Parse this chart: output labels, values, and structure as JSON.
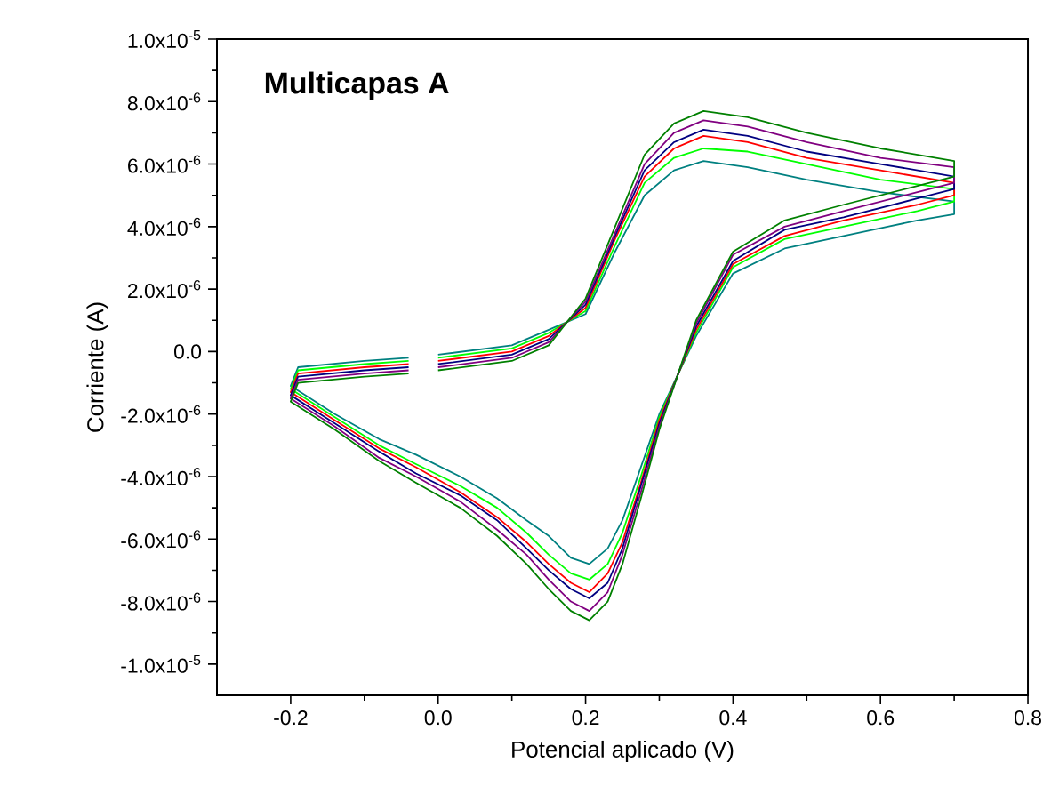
{
  "chart_data": {
    "type": "line",
    "title": "Multicapas A",
    "xlabel": "Potencial aplicado (V)",
    "ylabel": "Corriente (A)",
    "xlim": [
      -0.3,
      0.8
    ],
    "ylim": [
      -1.1e-05,
      1e-05
    ],
    "xticks": [
      {
        "value": -0.2,
        "label": "-0.2"
      },
      {
        "value": 0.0,
        "label": "0.0"
      },
      {
        "value": 0.2,
        "label": "0.2"
      },
      {
        "value": 0.4,
        "label": "0.4"
      },
      {
        "value": 0.6,
        "label": "0.6"
      },
      {
        "value": 0.8,
        "label": "0.8"
      }
    ],
    "yticks": [
      {
        "value": -1e-05,
        "label": "-1.0x10$^{-5}$"
      },
      {
        "value": -8e-06,
        "label": "-8.0x10$^{-6}$"
      },
      {
        "value": -6e-06,
        "label": "-6.0x10$^{-6}$"
      },
      {
        "value": -4e-06,
        "label": "-4.0x10$^{-6}$"
      },
      {
        "value": -2e-06,
        "label": "-2.0x10$^{-6}$"
      },
      {
        "value": 0.0,
        "label": "0.0"
      },
      {
        "value": 2e-06,
        "label": "2.0x10$^{-6}$"
      },
      {
        "value": 4e-06,
        "label": "4.0x10$^{-6}$"
      },
      {
        "value": 6e-06,
        "label": "6.0x10$^{-6}$"
      },
      {
        "value": 8e-06,
        "label": "8.0x10$^{-6}$"
      },
      {
        "value": 1e-05,
        "label": "1.0x10$^{-5}$"
      }
    ],
    "x": [
      0.0,
      0.1,
      0.15,
      0.2,
      0.24,
      0.28,
      0.32,
      0.36,
      0.42,
      0.5,
      0.6,
      0.7,
      0.7,
      0.65,
      0.55,
      0.47,
      0.4,
      0.35,
      0.3,
      0.275,
      0.25,
      0.23,
      0.205,
      0.18,
      0.15,
      0.12,
      0.08,
      0.03,
      -0.03,
      -0.08,
      -0.14,
      -0.2,
      -0.19,
      -0.1,
      -0.04
    ],
    "series": [
      {
        "color": "#008080",
        "values": [
          -1e-07,
          2e-07,
          7e-07,
          1.2e-06,
          3.2e-06,
          5e-06,
          5.8e-06,
          6.1e-06,
          5.9e-06,
          5.5e-06,
          5.1e-06,
          4.8e-06,
          4.4e-06,
          4.2e-06,
          3.7e-06,
          3.3e-06,
          2.5e-06,
          5e-07,
          -2e-06,
          -3.7e-06,
          -5.4e-06,
          -6.3e-06,
          -6.8e-06,
          -6.6e-06,
          -5.9e-06,
          -5.4e-06,
          -4.7e-06,
          -4e-06,
          -3.3e-06,
          -2.8e-06,
          -2e-06,
          -1.1e-06,
          -5e-07,
          -3e-07,
          -2e-07
        ]
      },
      {
        "color": "#00ff00",
        "values": [
          -2e-07,
          1e-07,
          6e-07,
          1.3e-06,
          3.4e-06,
          5.4e-06,
          6.2e-06,
          6.5e-06,
          6.4e-06,
          6e-06,
          5.5e-06,
          5.2e-06,
          4.8e-06,
          4.5e-06,
          4e-06,
          3.6e-06,
          2.7e-06,
          6e-07,
          -2.1e-06,
          -4e-06,
          -5.8e-06,
          -6.8e-06,
          -7.3e-06,
          -7.1e-06,
          -6.5e-06,
          -5.8e-06,
          -5e-06,
          -4.3e-06,
          -3.6e-06,
          -3e-06,
          -2.1e-06,
          -1.2e-06,
          -6e-07,
          -4e-07,
          -3e-07
        ]
      },
      {
        "color": "#ff0000",
        "values": [
          -3e-07,
          0.0,
          5e-07,
          1.4e-06,
          3.6e-06,
          5.6e-06,
          6.5e-06,
          6.9e-06,
          6.7e-06,
          6.2e-06,
          5.8e-06,
          5.4e-06,
          5e-06,
          4.7e-06,
          4.2e-06,
          3.7e-06,
          2.8e-06,
          7e-07,
          -2.2e-06,
          -4.2e-06,
          -6.1e-06,
          -7.1e-06,
          -7.7e-06,
          -7.4e-06,
          -6.8e-06,
          -6.1e-06,
          -5.3e-06,
          -4.5e-06,
          -3.7e-06,
          -3.1e-06,
          -2.2e-06,
          -1.3e-06,
          -7e-07,
          -5e-07,
          -4e-07
        ]
      },
      {
        "color": "#000080",
        "values": [
          -4e-07,
          -1e-07,
          4e-07,
          1.5e-06,
          3.7e-06,
          5.8e-06,
          6.7e-06,
          7.1e-06,
          6.9e-06,
          6.4e-06,
          6e-06,
          5.6e-06,
          5.2e-06,
          4.9e-06,
          4.3e-06,
          3.9e-06,
          2.9e-06,
          8e-07,
          -2.3e-06,
          -4.3e-06,
          -6.3e-06,
          -7.4e-06,
          -7.9e-06,
          -7.6e-06,
          -7e-06,
          -6.3e-06,
          -5.4e-06,
          -4.6e-06,
          -3.9e-06,
          -3.2e-06,
          -2.3e-06,
          -1.4e-06,
          -8e-07,
          -6e-07,
          -5e-07
        ]
      },
      {
        "color": "#800080",
        "values": [
          -5e-07,
          -2e-07,
          3e-07,
          1.6e-06,
          3.8e-06,
          6e-06,
          7e-06,
          7.4e-06,
          7.2e-06,
          6.7e-06,
          6.2e-06,
          5.9e-06,
          5.4e-06,
          5.1e-06,
          4.5e-06,
          4e-06,
          3.1e-06,
          9e-07,
          -2.4e-06,
          -4.5e-06,
          -6.5e-06,
          -7.7e-06,
          -8.3e-06,
          -8e-06,
          -7.3e-06,
          -6.5e-06,
          -5.7e-06,
          -4.8e-06,
          -4e-06,
          -3.4e-06,
          -2.4e-06,
          -1.5e-06,
          -9e-07,
          -7e-07,
          -6e-07
        ]
      },
      {
        "color": "#008000",
        "values": [
          -6e-07,
          -3e-07,
          2e-07,
          1.7e-06,
          4e-06,
          6.3e-06,
          7.3e-06,
          7.7e-06,
          7.5e-06,
          7e-06,
          6.5e-06,
          6.1e-06,
          5.6e-06,
          5.3e-06,
          4.7e-06,
          4.2e-06,
          3.2e-06,
          1e-06,
          -2.5e-06,
          -4.7e-06,
          -6.8e-06,
          -8e-06,
          -8.6e-06,
          -8.3e-06,
          -7.6e-06,
          -6.8e-06,
          -5.9e-06,
          -5e-06,
          -4.2e-06,
          -3.5e-06,
          -2.5e-06,
          -1.6e-06,
          -1e-06,
          -8e-07,
          -7e-07
        ]
      }
    ]
  }
}
